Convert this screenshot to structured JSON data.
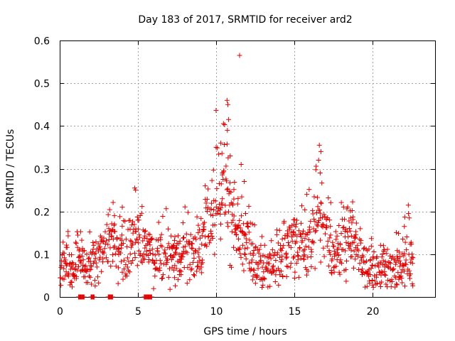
{
  "chart_data": {
    "type": "scatter",
    "title": "Day 183 of 2017, SRMTID for receiver ard2",
    "xlabel": "GPS time / hours",
    "ylabel": "SRMTID / TECUs",
    "xlim": [
      0,
      24
    ],
    "ylim": [
      0,
      0.6
    ],
    "x_ticks": [
      0,
      5,
      10,
      15,
      20
    ],
    "y_ticks": [
      0,
      0.1,
      0.2,
      0.3,
      0.4,
      0.5,
      0.6
    ],
    "x_tick_labels": [
      "0",
      "5",
      "10",
      "15",
      "20"
    ],
    "y_tick_labels": [
      "0",
      "0.1",
      "0.2",
      "0.3",
      "0.4",
      "0.5",
      "0.6"
    ],
    "grid": true,
    "color": "#e00000",
    "marker": "plus",
    "sampling_hours": 0.0083,
    "series_trend": [
      {
        "x": 0.0,
        "y": 0.08
      },
      {
        "x": 0.5,
        "y": 0.09
      },
      {
        "x": 0.9,
        "y": 0.07
      },
      {
        "x": 1.2,
        "y": 0.08
      },
      {
        "x": 1.6,
        "y": 0.06
      },
      {
        "x": 2.0,
        "y": 0.08
      },
      {
        "x": 2.5,
        "y": 0.1
      },
      {
        "x": 2.9,
        "y": 0.12
      },
      {
        "x": 3.2,
        "y": 0.15
      },
      {
        "x": 3.5,
        "y": 0.12
      },
      {
        "x": 3.9,
        "y": 0.09
      },
      {
        "x": 4.3,
        "y": 0.11
      },
      {
        "x": 4.8,
        "y": 0.14
      },
      {
        "x": 5.2,
        "y": 0.12
      },
      {
        "x": 5.6,
        "y": 0.11
      },
      {
        "x": 6.0,
        "y": 0.09
      },
      {
        "x": 6.5,
        "y": 0.1
      },
      {
        "x": 7.0,
        "y": 0.09
      },
      {
        "x": 7.5,
        "y": 0.1
      },
      {
        "x": 8.0,
        "y": 0.11
      },
      {
        "x": 8.5,
        "y": 0.1
      },
      {
        "x": 9.0,
        "y": 0.12
      },
      {
        "x": 9.5,
        "y": 0.17
      },
      {
        "x": 10.0,
        "y": 0.21
      },
      {
        "x": 10.5,
        "y": 0.25
      },
      {
        "x": 10.8,
        "y": 0.23
      },
      {
        "x": 11.2,
        "y": 0.18
      },
      {
        "x": 11.6,
        "y": 0.16
      },
      {
        "x": 12.0,
        "y": 0.13
      },
      {
        "x": 12.5,
        "y": 0.09
      },
      {
        "x": 13.0,
        "y": 0.07
      },
      {
        "x": 13.5,
        "y": 0.07
      },
      {
        "x": 14.0,
        "y": 0.09
      },
      {
        "x": 14.5,
        "y": 0.1
      },
      {
        "x": 15.0,
        "y": 0.12
      },
      {
        "x": 15.5,
        "y": 0.13
      },
      {
        "x": 16.0,
        "y": 0.14
      },
      {
        "x": 16.5,
        "y": 0.2
      },
      {
        "x": 16.9,
        "y": 0.18
      },
      {
        "x": 17.3,
        "y": 0.11
      },
      {
        "x": 17.8,
        "y": 0.1
      },
      {
        "x": 18.2,
        "y": 0.12
      },
      {
        "x": 18.7,
        "y": 0.15
      },
      {
        "x": 19.0,
        "y": 0.11
      },
      {
        "x": 19.5,
        "y": 0.07
      },
      {
        "x": 20.0,
        "y": 0.06
      },
      {
        "x": 20.5,
        "y": 0.06
      },
      {
        "x": 21.0,
        "y": 0.07
      },
      {
        "x": 21.5,
        "y": 0.07
      },
      {
        "x": 22.0,
        "y": 0.08
      },
      {
        "x": 22.3,
        "y": 0.11
      },
      {
        "x": 22.6,
        "y": 0.07
      }
    ],
    "spikes": [
      {
        "x": 11.5,
        "y": 0.565
      },
      {
        "x": 10.7,
        "y": 0.46
      },
      {
        "x": 10.75,
        "y": 0.45
      },
      {
        "x": 10.8,
        "y": 0.415
      },
      {
        "x": 10.72,
        "y": 0.39
      },
      {
        "x": 10.3,
        "y": 0.36
      },
      {
        "x": 10.0,
        "y": 0.35
      },
      {
        "x": 10.9,
        "y": 0.33
      },
      {
        "x": 11.6,
        "y": 0.31
      },
      {
        "x": 16.6,
        "y": 0.355
      },
      {
        "x": 16.7,
        "y": 0.34
      },
      {
        "x": 16.55,
        "y": 0.32
      },
      {
        "x": 16.65,
        "y": 0.29
      },
      {
        "x": 4.8,
        "y": 0.255
      },
      {
        "x": 4.85,
        "y": 0.25
      },
      {
        "x": 9.3,
        "y": 0.26
      },
      {
        "x": 10.4,
        "y": 0.29
      },
      {
        "x": 11.8,
        "y": 0.27
      },
      {
        "x": 22.3,
        "y": 0.195
      },
      {
        "x": 22.35,
        "y": 0.185
      },
      {
        "x": 4.0,
        "y": 0.21
      },
      {
        "x": 3.5,
        "y": 0.19
      },
      {
        "x": 15.8,
        "y": 0.24
      },
      {
        "x": 18.6,
        "y": 0.185
      }
    ],
    "zero_markers": [
      {
        "x_start": 1.2,
        "x_end": 1.6
      },
      {
        "x_start": 2.0,
        "x_end": 2.2
      },
      {
        "x_start": 3.1,
        "x_end": 3.4
      },
      {
        "x_start": 5.4,
        "x_end": 5.9
      }
    ]
  }
}
